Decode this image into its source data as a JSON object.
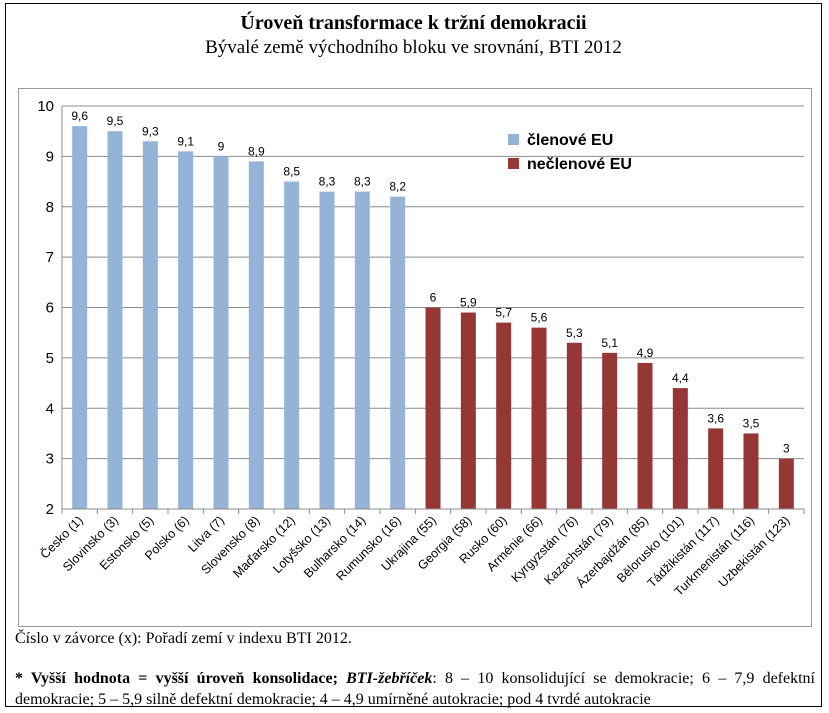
{
  "chart_data": {
    "type": "bar",
    "title": "Úroveň transformace k tržní demokracii",
    "subtitle": "Bývalé země východního bloku ve srovnání, BTI 2012",
    "categories": [
      "Česko (1)",
      "Slovinsko (3)",
      "Estonsko (5)",
      "Polsko (6)",
      "Litva (7)",
      "Slovensko (8)",
      "Maďarsko (12)",
      "Lotyšsko (13)",
      "Bulharsko (14)",
      "Rumunsko (16)",
      "Ukrajina (55)",
      "Georgia (58)",
      "Rusko (60)",
      "Arménie (66)",
      "Kyrgyzstán (76)",
      "Kazachstán (79)",
      "Ázerbajdžán (85)",
      "Bělorusko (101)",
      "Tádžikistán (117)",
      "Turkmenistán (116)",
      "Uzbekistán (123)"
    ],
    "values": [
      9.6,
      9.5,
      9.3,
      9.1,
      9.0,
      8.9,
      8.5,
      8.3,
      8.3,
      8.2,
      6.0,
      5.9,
      5.7,
      5.6,
      5.3,
      5.1,
      4.9,
      4.4,
      3.6,
      3.5,
      3.0
    ],
    "value_labels": [
      "9,6",
      "9,5",
      "9,3",
      "9,1",
      "9",
      "8,9",
      "8,5",
      "8,3",
      "8,3",
      "8,2",
      "6",
      "5,9",
      "5,7",
      "5,6",
      "5,3",
      "5,1",
      "4,9",
      "4,4",
      "3,6",
      "3,5",
      "3"
    ],
    "groups": [
      "eu",
      "eu",
      "eu",
      "eu",
      "eu",
      "eu",
      "eu",
      "eu",
      "eu",
      "eu",
      "non",
      "non",
      "non",
      "non",
      "non",
      "non",
      "non",
      "non",
      "non",
      "non",
      "non"
    ],
    "series": [
      {
        "key": "eu",
        "name": "členové EU",
        "color": "#95b3d7"
      },
      {
        "key": "non",
        "name": "nečlenové EU",
        "color": "#953735"
      }
    ],
    "ylim": [
      2,
      10
    ],
    "yticks": [
      "2",
      "3",
      "4",
      "5",
      "6",
      "7",
      "8",
      "9",
      "10"
    ],
    "grid": true,
    "legend_position": "top-right"
  },
  "notes": {
    "ranking": "Číslo v závorce (x): Pořadí zemí v indexu BTI 2012.",
    "footnote_bold": "* Vyšší hodnota = vyšší úroveň konsolidace;",
    "footnote_bold_italic": "BTI-žebříček",
    "footnote_rest": ": 8 – 10 konsolidující se demokracie; 6 – 7,9 defektní demokracie; 5 – 5,9 silně defektní demokracie; 4 – 4,9 umírněné autokracie; pod 4 tvrdé autokracie"
  }
}
